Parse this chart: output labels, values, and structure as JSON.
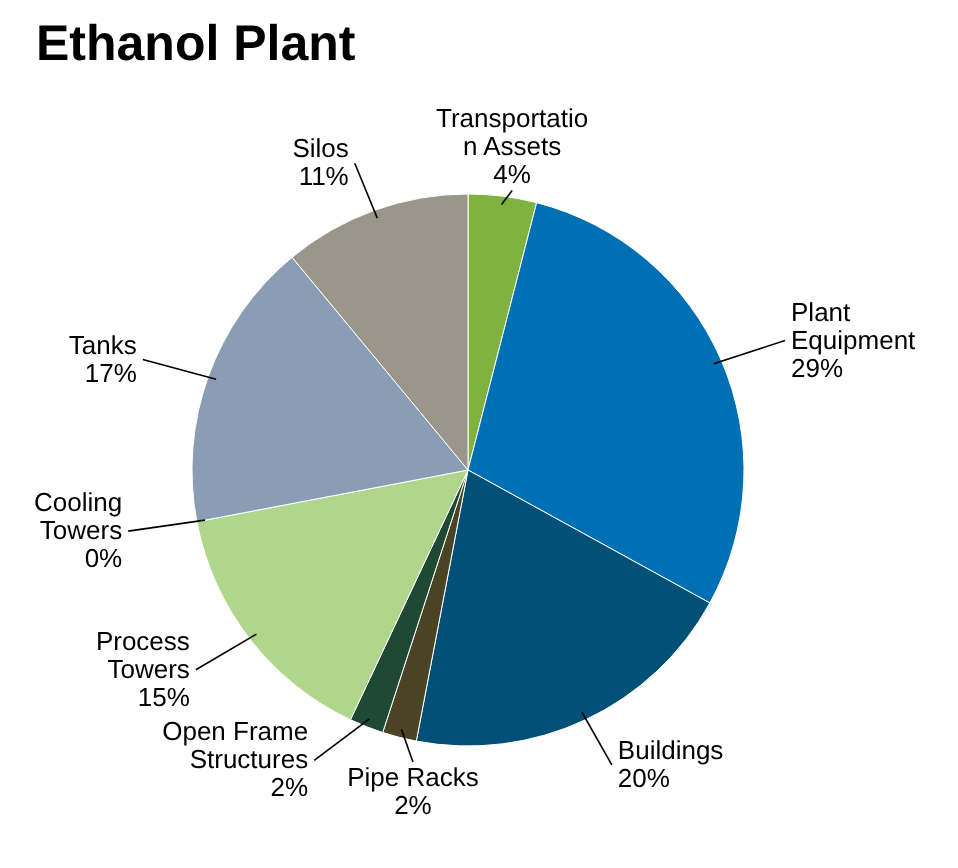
{
  "chart_data": {
    "type": "pie",
    "title": "Ethanol Plant",
    "categories": [
      "Transportation Assets",
      "Plant Equipment",
      "Buildings",
      "Pipe Racks",
      "Open Frame Structures",
      "Process Towers",
      "Cooling Towers",
      "Tanks",
      "Silos"
    ],
    "values": [
      4,
      29,
      20,
      2,
      2,
      15,
      0,
      17,
      11
    ],
    "value_labels": [
      "4%",
      "29%",
      "20%",
      "2%",
      "2%",
      "15%",
      "0%",
      "17%",
      "11%"
    ],
    "colors": [
      "#7db33e",
      "#0070b4",
      "#005078",
      "#4a4424",
      "#1e4a34",
      "#b0d68c",
      null,
      "#8a9db4",
      "#9a978a"
    ]
  }
}
